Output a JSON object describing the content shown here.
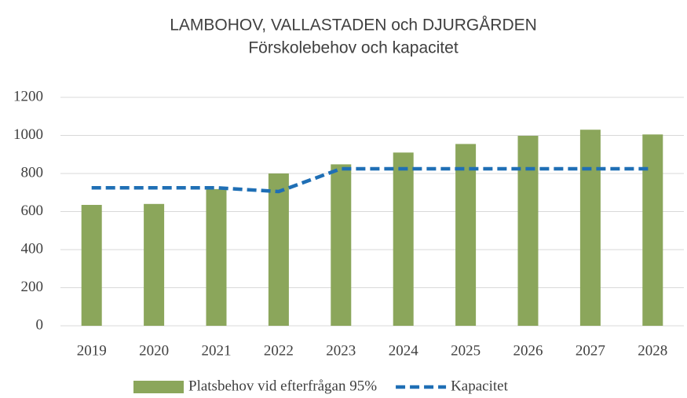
{
  "chart_data": {
    "type": "bar",
    "title": [
      "LAMBOHOV, VALLASTADEN och DJURGÅRDEN",
      "Förskolebehov och kapacitet"
    ],
    "categories": [
      "2019",
      "2020",
      "2021",
      "2022",
      "2023",
      "2024",
      "2025",
      "2026",
      "2027",
      "2028"
    ],
    "series": [
      {
        "name": "Platsbehov vid efterfrågan 95%",
        "type": "bar",
        "color": "#8ba65b",
        "values": [
          635,
          640,
          718,
          800,
          848,
          910,
          955,
          998,
          1030,
          1005
        ]
      },
      {
        "name": "Kapacitet",
        "type": "line",
        "color": "#1f6fb5",
        "dashed": true,
        "values": [
          725,
          725,
          725,
          705,
          825,
          825,
          825,
          825,
          825,
          825
        ]
      }
    ],
    "ylim": [
      0,
      1200
    ],
    "yticks": [
      0,
      200,
      400,
      600,
      800,
      1000,
      1200
    ],
    "grid": true,
    "legend": "bottom"
  }
}
